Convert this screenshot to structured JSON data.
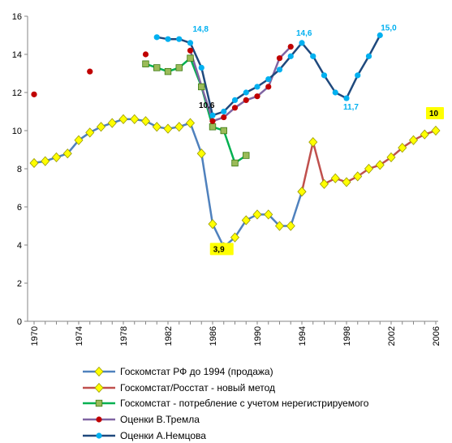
{
  "chart_data": {
    "type": "line",
    "title": "",
    "xlabel": "",
    "ylabel": "",
    "xlim": [
      1970,
      2006
    ],
    "ylim": [
      0,
      16
    ],
    "y_ticks": [
      "0",
      "2",
      "4",
      "6",
      "8",
      "10",
      "12",
      "14",
      "16"
    ],
    "x_ticks": [
      "1970",
      "1974",
      "1978",
      "1982",
      "1986",
      "1990",
      "1994",
      "1998",
      "2002",
      "2006"
    ],
    "grid": false,
    "legend_position": "bottom",
    "series": [
      {
        "name": "Госкомстат РФ до 1994 (продажа)",
        "color": "#4f81bd",
        "marker": "diamond",
        "marker_color": "#ffff00",
        "points": [
          [
            1970,
            8.3
          ],
          [
            1971,
            8.4
          ],
          [
            1972,
            8.6
          ],
          [
            1973,
            8.8
          ],
          [
            1974,
            9.5
          ],
          [
            1975,
            9.9
          ],
          [
            1976,
            10.2
          ],
          [
            1977,
            10.4
          ],
          [
            1978,
            10.6
          ],
          [
            1979,
            10.6
          ],
          [
            1980,
            10.5
          ],
          [
            1981,
            10.2
          ],
          [
            1982,
            10.1
          ],
          [
            1983,
            10.2
          ],
          [
            1984,
            10.4
          ],
          [
            1985,
            8.8
          ],
          [
            1986,
            5.1
          ],
          [
            1987,
            3.9
          ],
          [
            1988,
            4.4
          ],
          [
            1989,
            5.3
          ],
          [
            1990,
            5.6
          ],
          [
            1991,
            5.6
          ],
          [
            1992,
            5.0
          ],
          [
            1993,
            5.0
          ],
          [
            1994,
            6.8
          ]
        ]
      },
      {
        "name": "Госкомстат/Росстат - новый метод",
        "color": "#c0504d",
        "marker": "diamond",
        "marker_color": "#ffff00",
        "points": [
          [
            1994,
            6.8
          ],
          [
            1995,
            9.4
          ],
          [
            1996,
            7.2
          ],
          [
            1997,
            7.5
          ],
          [
            1998,
            7.3
          ],
          [
            1999,
            7.6
          ],
          [
            2000,
            8.0
          ],
          [
            2001,
            8.2
          ],
          [
            2002,
            8.6
          ],
          [
            2003,
            9.1
          ],
          [
            2004,
            9.5
          ],
          [
            2005,
            9.8
          ],
          [
            2006,
            10.0
          ]
        ]
      },
      {
        "name": "Госкомстат - потребление с учетом нерегистрируемого",
        "color": "#00b050",
        "marker": "square",
        "marker_color": "#9bbb59",
        "points": [
          [
            1980,
            13.5
          ],
          [
            1981,
            13.3
          ],
          [
            1982,
            13.1
          ],
          [
            1983,
            13.3
          ],
          [
            1984,
            13.8
          ],
          [
            1985,
            12.3
          ],
          [
            1986,
            10.2
          ],
          [
            1987,
            10.0
          ],
          [
            1988,
            8.3
          ],
          [
            1989,
            8.7
          ]
        ]
      },
      {
        "name": "Оценки В.Тремла",
        "color": "#8064a2",
        "marker": "circle",
        "marker_color": "#c00000",
        "points": [
          [
            1970,
            11.9
          ],
          [
            1975,
            13.1
          ],
          [
            1980,
            14.0
          ],
          [
            1984,
            14.2
          ],
          [
            1986,
            10.5
          ],
          [
            1987,
            10.7
          ],
          [
            1988,
            11.2
          ],
          [
            1989,
            11.6
          ],
          [
            1990,
            11.8
          ],
          [
            1991,
            12.3
          ],
          [
            1992,
            13.8
          ],
          [
            1993,
            14.4
          ]
        ],
        "isolated": [
          [
            1970,
            11.9
          ],
          [
            1975,
            13.1
          ],
          [
            1980,
            14.0
          ]
        ]
      },
      {
        "name": "Оценки А.Немцова",
        "color": "#1f497d",
        "marker": "circle",
        "marker_color": "#00b0f0",
        "points": [
          [
            1981,
            14.9
          ],
          [
            1982,
            14.8
          ],
          [
            1983,
            14.8
          ],
          [
            1984,
            14.6
          ],
          [
            1985,
            13.3
          ],
          [
            1986,
            10.8
          ],
          [
            1987,
            11.0
          ],
          [
            1988,
            11.6
          ],
          [
            1989,
            12.0
          ],
          [
            1990,
            12.3
          ],
          [
            1991,
            12.7
          ],
          [
            1992,
            13.2
          ],
          [
            1993,
            13.9
          ],
          [
            1994,
            14.6
          ],
          [
            1995,
            13.9
          ],
          [
            1996,
            12.9
          ],
          [
            1997,
            12.0
          ],
          [
            1998,
            11.7
          ],
          [
            1999,
            12.9
          ],
          [
            2000,
            13.9
          ],
          [
            2001,
            15.0
          ]
        ]
      }
    ],
    "annotations": [
      {
        "text": "14,8",
        "x": 1984,
        "y": 14.8,
        "color": "#00b0f0",
        "box": false
      },
      {
        "text": "10,6",
        "x": 1986,
        "y": 10.6,
        "color": "#000000",
        "box": false
      },
      {
        "text": "3,9",
        "x": 1987,
        "y": 3.9,
        "color": "#000000",
        "box": true
      },
      {
        "text": "14,6",
        "x": 1994,
        "y": 14.6,
        "color": "#00b0f0",
        "box": false
      },
      {
        "text": "11,7",
        "x": 1998,
        "y": 11.7,
        "color": "#00b0f0",
        "box": false
      },
      {
        "text": "15,0",
        "x": 2001,
        "y": 15.0,
        "color": "#00b0f0",
        "box": false
      },
      {
        "text": "10",
        "x": 2006,
        "y": 10.0,
        "color": "#000000",
        "box": true
      }
    ]
  }
}
